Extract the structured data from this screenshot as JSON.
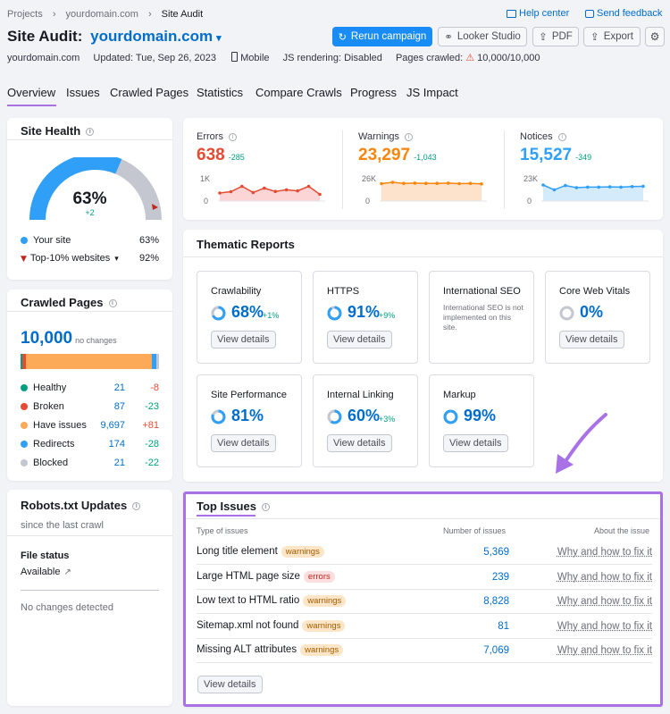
{
  "breadcrumb": {
    "items": [
      "Projects",
      "yourdomain.com",
      "Site Audit"
    ],
    "sep": "›"
  },
  "top_links": {
    "help": "Help center",
    "feedback": "Send feedback"
  },
  "header": {
    "title_prefix": "Site Audit:",
    "domain": "yourdomain.com",
    "buttons": {
      "rerun": "Rerun campaign",
      "looker": "Looker Studio",
      "pdf": "PDF",
      "export": "Export"
    }
  },
  "meta": {
    "domain": "yourdomain.com",
    "updated": "Updated: Tue, Sep 26, 2023",
    "device": "Mobile",
    "js": "JS rendering: Disabled",
    "crawled_label": "Pages crawled:",
    "crawled_value": "10,000/10,000"
  },
  "tabs": [
    "Overview",
    "Issues",
    "Crawled Pages",
    "Statistics",
    "Compare Crawls",
    "Progress",
    "JS Impact"
  ],
  "site_health": {
    "title": "Site Health",
    "percent": "63%",
    "delta": "+2",
    "value": 63,
    "legend": [
      {
        "label": "Your site",
        "value": "63%"
      },
      {
        "label": "Top-10% websites",
        "value": "92%"
      }
    ],
    "colors": {
      "yours": "#2f9ff8",
      "top": "#c0281f"
    }
  },
  "crawled_pages": {
    "title": "Crawled Pages",
    "total": "10,000",
    "total_note": "no changes",
    "items": [
      {
        "label": "Healthy",
        "value": "21",
        "delta": "-8",
        "color": "#009f81"
      },
      {
        "label": "Broken",
        "value": "87",
        "delta": "-23",
        "color": "#e34c33"
      },
      {
        "label": "Have issues",
        "value": "9,697",
        "delta": "+81",
        "color": "#fdaa58"
      },
      {
        "label": "Redirects",
        "value": "174",
        "delta": "-28",
        "color": "#2f9ff8"
      },
      {
        "label": "Blocked",
        "value": "21",
        "delta": "-22",
        "color": "#c4c7cf"
      }
    ]
  },
  "metrics": [
    {
      "label": "Errors",
      "value": "638",
      "delta": "-285",
      "color": "#e34c33",
      "ymax": "1K",
      "ymin": "0"
    },
    {
      "label": "Warnings",
      "value": "23,297",
      "delta": "-1,043",
      "color": "#f8860d",
      "ymax": "26K",
      "ymin": "0"
    },
    {
      "label": "Notices",
      "value": "15,527",
      "delta": "-349",
      "color": "#2f9ff8",
      "ymax": "23K",
      "ymin": "0"
    }
  ],
  "thematic": {
    "title": "Thematic Reports",
    "view_label": "View details",
    "cards": [
      {
        "title": "Crawlability",
        "percent": "68%",
        "delta": "+1%"
      },
      {
        "title": "HTTPS",
        "percent": "91%",
        "delta": "+9%"
      },
      {
        "title": "International SEO",
        "note": "International SEO is not implemented on this site."
      },
      {
        "title": "Core Web Vitals",
        "percent": "0%"
      },
      {
        "title": "Site Performance",
        "percent": "81%"
      },
      {
        "title": "Internal Linking",
        "percent": "60%",
        "delta": "+3%"
      },
      {
        "title": "Markup",
        "percent": "99%"
      }
    ]
  },
  "robots": {
    "title": "Robots.txt Updates",
    "since": "since the last crawl",
    "file_status_label": "File status",
    "file_status_value": "Available",
    "no_changes": "No changes detected"
  },
  "top_issues": {
    "title": "Top Issues",
    "columns": [
      "Type of issues",
      "Number of issues",
      "About the issue"
    ],
    "fix_label": "Why and how to fix it",
    "rows": [
      {
        "name": "Long title element",
        "tag": "warnings",
        "count": "5,369"
      },
      {
        "name": "Large HTML page size",
        "tag": "errors",
        "count": "239"
      },
      {
        "name": "Low text to HTML ratio",
        "tag": "warnings",
        "count": "8,828"
      },
      {
        "name": "Sitemap.xml not found",
        "tag": "warnings",
        "count": "81"
      },
      {
        "name": "Missing ALT attributes",
        "tag": "warnings",
        "count": "7,069"
      }
    ],
    "view_label": "View details",
    "highlight_color": "#a971e6"
  }
}
